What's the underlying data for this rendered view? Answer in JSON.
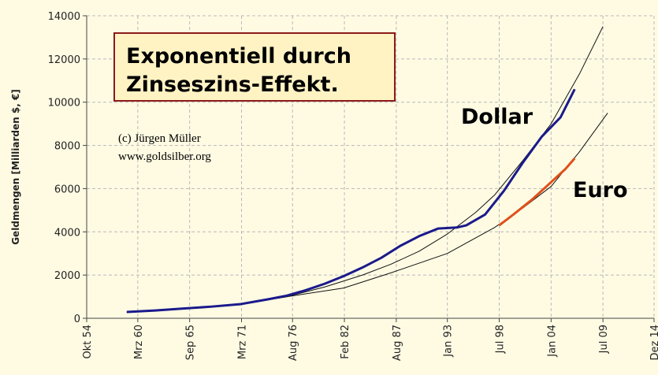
{
  "chart_data": {
    "type": "line",
    "ylabel": "Geldmengen [Milliarden $, €]",
    "box_text": [
      "Exponentiell durch",
      "Zinseszins-Effekt."
    ],
    "credit": [
      "(c) Jürgen Müller",
      "www.goldsilber.org"
    ],
    "xlim": [
      1954.75,
      2014.92
    ],
    "xticks": [
      {
        "value": 1954.75,
        "label": "Okt 54"
      },
      {
        "value": 1960.17,
        "label": "Mrz 60"
      },
      {
        "value": 1965.67,
        "label": "Sep 65"
      },
      {
        "value": 1971.17,
        "label": "Mrz 71"
      },
      {
        "value": 1976.58,
        "label": "Aug 76"
      },
      {
        "value": 1982.08,
        "label": "Feb 82"
      },
      {
        "value": 1987.58,
        "label": "Aug 87"
      },
      {
        "value": 1993.0,
        "label": "Jan 93"
      },
      {
        "value": 1998.5,
        "label": "Jul 98"
      },
      {
        "value": 2004.0,
        "label": "Jan 04"
      },
      {
        "value": 2009.5,
        "label": "Jul 09"
      },
      {
        "value": 2014.92,
        "label": "Dez 14"
      }
    ],
    "ylim": [
      0,
      14000
    ],
    "yticks": [
      0,
      2000,
      4000,
      6000,
      8000,
      10000,
      12000,
      14000
    ],
    "grid": true,
    "series": [
      {
        "color": "#111111",
        "width": 1,
        "x": [
          1959,
          1965,
          1971,
          1976,
          1980,
          1984,
          1987,
          1990,
          1993,
          1996,
          1998,
          2001,
          2004,
          2007,
          2009.5
        ],
        "values": [
          280,
          430,
          640,
          1000,
          1450,
          2000,
          2500,
          3100,
          3900,
          4900,
          5700,
          7300,
          9000,
          11300,
          13500
        ]
      },
      {
        "color": "#111111",
        "width": 1,
        "x": [
          1959,
          1965,
          1971,
          1976,
          1982,
          1987,
          1993,
          1998,
          2001,
          2004,
          2007,
          2010
        ],
        "values": [
          280,
          430,
          640,
          1000,
          1400,
          2100,
          3000,
          4200,
          5100,
          6100,
          7700,
          9500
        ]
      },
      {
        "name": "Dollar",
        "color": "#1a1a8c",
        "width": 3,
        "x": [
          1959,
          1962,
          1965,
          1968,
          1971,
          1974,
          1976,
          1978,
          1980,
          1982,
          1984,
          1986,
          1988,
          1990,
          1992,
          1994,
          1995,
          1997,
          1999,
          2001,
          2003,
          2005,
          2006.5
        ],
        "values": [
          290,
          360,
          450,
          540,
          650,
          880,
          1050,
          1300,
          1600,
          1950,
          2350,
          2800,
          3350,
          3800,
          4150,
          4200,
          4300,
          4800,
          5900,
          7200,
          8400,
          9300,
          10600
        ]
      },
      {
        "name": "Euro",
        "color": "#e0501a",
        "width": 3,
        "x": [
          1998.5,
          2000,
          2002,
          2004,
          2005.5,
          2006.5
        ],
        "values": [
          4300,
          4800,
          5500,
          6300,
          6900,
          7400
        ]
      }
    ]
  }
}
